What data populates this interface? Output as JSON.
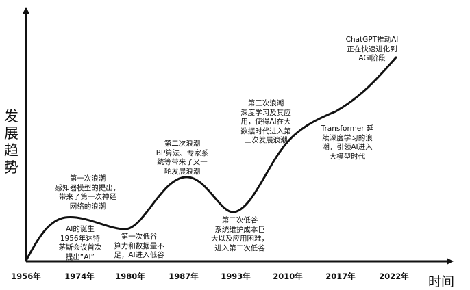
{
  "y_axis_label": [
    "发",
    "展",
    "趋",
    "势"
  ],
  "x_axis_label": "时间",
  "years": [
    "1956年",
    "1974年",
    "1980年",
    "1987年",
    "1993年",
    "2010年",
    "2017年",
    "2022年"
  ],
  "annotations": [
    {
      "id": "ai-birth",
      "lines": [
        "AI的诞生",
        "1956年达特",
        "茅斯会议首次",
        "提出“AI”"
      ]
    },
    {
      "id": "first-wave",
      "lines": [
        "第一次浪潮",
        "感知器模型的提出，",
        "带来了第一次神经",
        "网络的浪潮"
      ]
    },
    {
      "id": "first-trough",
      "lines": [
        "第一次低谷",
        "算力和数据量不",
        "足，AI进入低谷"
      ]
    },
    {
      "id": "second-wave",
      "lines": [
        "第二次浪潮",
        "BP算法、专家系",
        "统等带来了又一",
        "轮发展浪潮"
      ]
    },
    {
      "id": "second-trough",
      "lines": [
        "第二次低谷",
        "系统维护成本巨",
        "大以及应用困难，",
        "进入第二次低谷"
      ]
    },
    {
      "id": "third-wave",
      "lines": [
        "第三次浪潮",
        "深度学习及其应",
        "用，使得AI在大",
        "数据时代进入第",
        "三次发展浪潮"
      ]
    },
    {
      "id": "transformer",
      "lines": [
        "Transformer 延",
        "续深度学习的浪",
        "潮，引领AI进入",
        "大模型时代"
      ]
    },
    {
      "id": "chatgpt",
      "lines": [
        "ChatGPT推动AI",
        "正在快速进化到",
        "AGI阶段"
      ]
    }
  ],
  "colors": {
    "line": "#111111",
    "text": "#111111",
    "background": "#ffffff"
  }
}
